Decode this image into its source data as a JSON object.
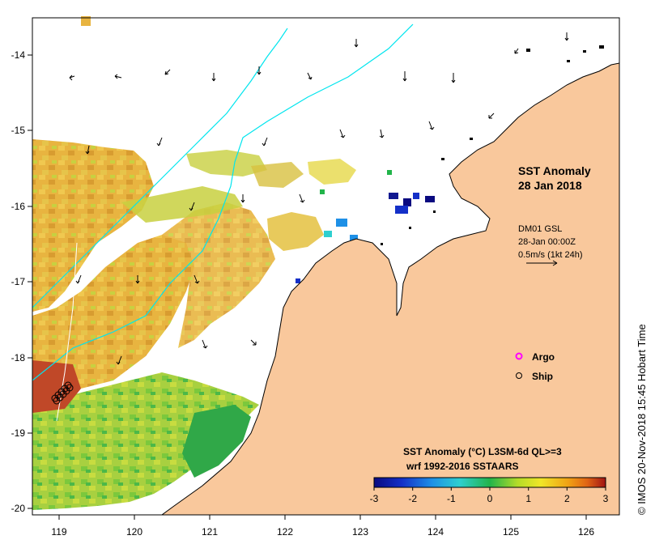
{
  "map": {
    "title_line1": "SST Anomaly",
    "title_line2": "28 Jan 2018",
    "current_label_1": "DM01 GSL",
    "current_label_2": "28-Jan 00:00Z",
    "current_label_3": "0.5m/s (1kt 24h)",
    "legend": [
      {
        "label": "Argo",
        "color": "#ff00ff"
      },
      {
        "label": "Ship",
        "color": "#000000"
      }
    ],
    "colorbar_title_1": "SST Anomaly (°C) L3SM-6d QL>=3",
    "colorbar_title_2": "wrf 1992-2016 SSTAARS",
    "credit": "© IMOS 20-Nov-2018 15:45 Hobart Time",
    "land_color": "#f9c89c",
    "coast_color": "#000000",
    "isobath_color": "#00e5ee"
  },
  "axes": {
    "x_ticks": [
      "119",
      "120",
      "121",
      "122",
      "123",
      "124",
      "125",
      "126"
    ],
    "y_ticks": [
      "-14",
      "-15",
      "-16",
      "-17",
      "-18",
      "-19",
      "-20"
    ],
    "colorbar_ticks": [
      "-3",
      "-2",
      "-1",
      "0",
      "1",
      "2",
      "3"
    ]
  }
}
